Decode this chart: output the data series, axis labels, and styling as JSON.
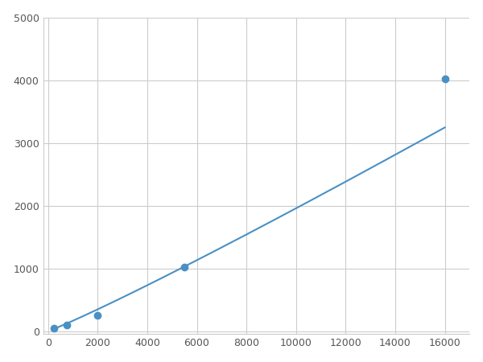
{
  "x": [
    250,
    750,
    2000,
    5500,
    16000
  ],
  "y": [
    50,
    100,
    250,
    1025,
    4025
  ],
  "line_color": "#4a90c4",
  "marker_color": "#4a90c4",
  "marker_size": 6,
  "line_width": 1.5,
  "xlim": [
    -200,
    17000
  ],
  "ylim": [
    -50,
    5000
  ],
  "xticks": [
    0,
    2000,
    4000,
    6000,
    8000,
    10000,
    12000,
    14000,
    16000
  ],
  "yticks": [
    0,
    1000,
    2000,
    3000,
    4000,
    5000
  ],
  "grid": true,
  "background_color": "#ffffff",
  "spine_color": "#cccccc"
}
